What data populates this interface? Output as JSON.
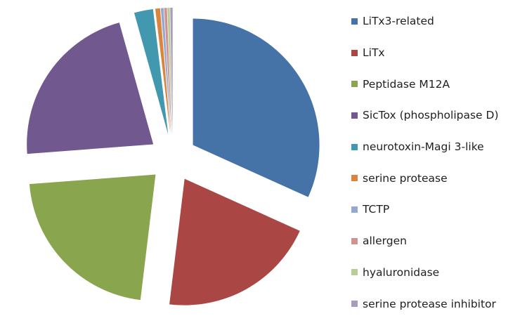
{
  "chart_data": {
    "type": "pie",
    "legend_position": "right",
    "exploded": true,
    "series": [
      {
        "name": "LiTx3-related",
        "value": 31.5,
        "color": "#4572A7"
      },
      {
        "name": "LiTx",
        "value": 20.0,
        "color": "#AA4643"
      },
      {
        "name": "Peptidase M12A",
        "value": 21.7,
        "color": "#89A54E"
      },
      {
        "name": "SicTox (phospholipase D)",
        "value": 21.7,
        "color": "#71588F"
      },
      {
        "name": "neurotoxin-Magi 3-like",
        "value": 2.4,
        "color": "#4198AF"
      },
      {
        "name": "serine protease",
        "value": 0.6,
        "color": "#DB843D"
      },
      {
        "name": "TCTP",
        "value": 0.35,
        "color": "#93A9CF"
      },
      {
        "name": "allergen",
        "value": 0.35,
        "color": "#D19392"
      },
      {
        "name": "hyaluronidase",
        "value": 0.3,
        "color": "#B9CD96"
      },
      {
        "name": "serine protease inhibitor",
        "value": 0.3,
        "color": "#A99BBD"
      }
    ]
  }
}
